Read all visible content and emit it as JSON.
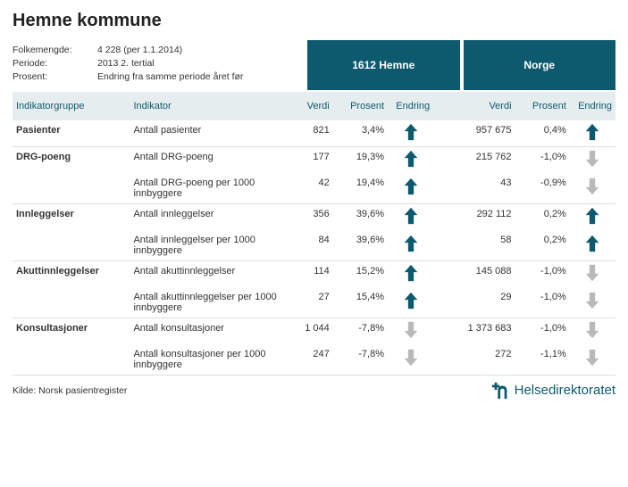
{
  "title": "Hemne kommune",
  "meta": {
    "folkemengde_label": "Folkemengde:",
    "folkemengde_value": "4 228 (per 1.1.2014)",
    "periode_label": "Periode:",
    "periode_value": "2013 2. tertial",
    "prosent_label": "Prosent:",
    "prosent_value": "Endring fra samme periode året før"
  },
  "regions": {
    "local": "1612 Hemne",
    "national": "Norge"
  },
  "columns": {
    "group": "Indikatorgruppe",
    "indicator": "Indikator",
    "value": "Verdi",
    "percent": "Prosent",
    "change": "Endring"
  },
  "colors": {
    "header_bg": "#0d5a6e",
    "subheader_bg": "#e6edef",
    "subheader_text": "#0d5a6e",
    "arrow_up": "#0d5a6e",
    "arrow_down": "#b9b9b9",
    "row_border": "#d8e0e2"
  },
  "rows": [
    {
      "group": "Pasienter",
      "indicator": "Antall pasienter",
      "local": {
        "value": "821",
        "percent": "3,4%",
        "dir": "up"
      },
      "national": {
        "value": "957 675",
        "percent": "0,4%",
        "dir": "up"
      },
      "sep": true
    },
    {
      "group": "DRG-poeng",
      "indicator": "Antall DRG-poeng",
      "local": {
        "value": "177",
        "percent": "19,3%",
        "dir": "up"
      },
      "national": {
        "value": "215 762",
        "percent": "-1,0%",
        "dir": "down"
      },
      "sep": false
    },
    {
      "group": "",
      "indicator": "Antall DRG-poeng per 1000 innbyggere",
      "local": {
        "value": "42",
        "percent": "19,4%",
        "dir": "up"
      },
      "national": {
        "value": "43",
        "percent": "-0,9%",
        "dir": "down"
      },
      "sep": true
    },
    {
      "group": "Innleggelser",
      "indicator": "Antall innleggelser",
      "local": {
        "value": "356",
        "percent": "39,6%",
        "dir": "up"
      },
      "national": {
        "value": "292 112",
        "percent": "0,2%",
        "dir": "up"
      },
      "sep": false
    },
    {
      "group": "",
      "indicator": "Antall innleggelser per 1000 innbyggere",
      "local": {
        "value": "84",
        "percent": "39,6%",
        "dir": "up"
      },
      "national": {
        "value": "58",
        "percent": "0,2%",
        "dir": "up"
      },
      "sep": true
    },
    {
      "group": "Akuttinnleggelser",
      "indicator": "Antall akuttinnleggelser",
      "local": {
        "value": "114",
        "percent": "15,2%",
        "dir": "up"
      },
      "national": {
        "value": "145 088",
        "percent": "-1,0%",
        "dir": "down"
      },
      "sep": false
    },
    {
      "group": "",
      "indicator": "Antall akuttinnleggelser per 1000 innbyggere",
      "local": {
        "value": "27",
        "percent": "15,4%",
        "dir": "up"
      },
      "national": {
        "value": "29",
        "percent": "-1,0%",
        "dir": "down"
      },
      "sep": true
    },
    {
      "group": "Konsultasjoner",
      "indicator": "Antall konsultasjoner",
      "local": {
        "value": "1 044",
        "percent": "-7,8%",
        "dir": "down"
      },
      "national": {
        "value": "1 373 683",
        "percent": "-1,0%",
        "dir": "down"
      },
      "sep": false
    },
    {
      "group": "",
      "indicator": "Antall konsultasjoner per 1000 innbyggere",
      "local": {
        "value": "247",
        "percent": "-7,8%",
        "dir": "down"
      },
      "national": {
        "value": "272",
        "percent": "-1,1%",
        "dir": "down"
      },
      "sep": true
    }
  ],
  "footer": {
    "source": "Kilde: Norsk pasientregister",
    "logo_text": "Helsedirektoratet"
  }
}
